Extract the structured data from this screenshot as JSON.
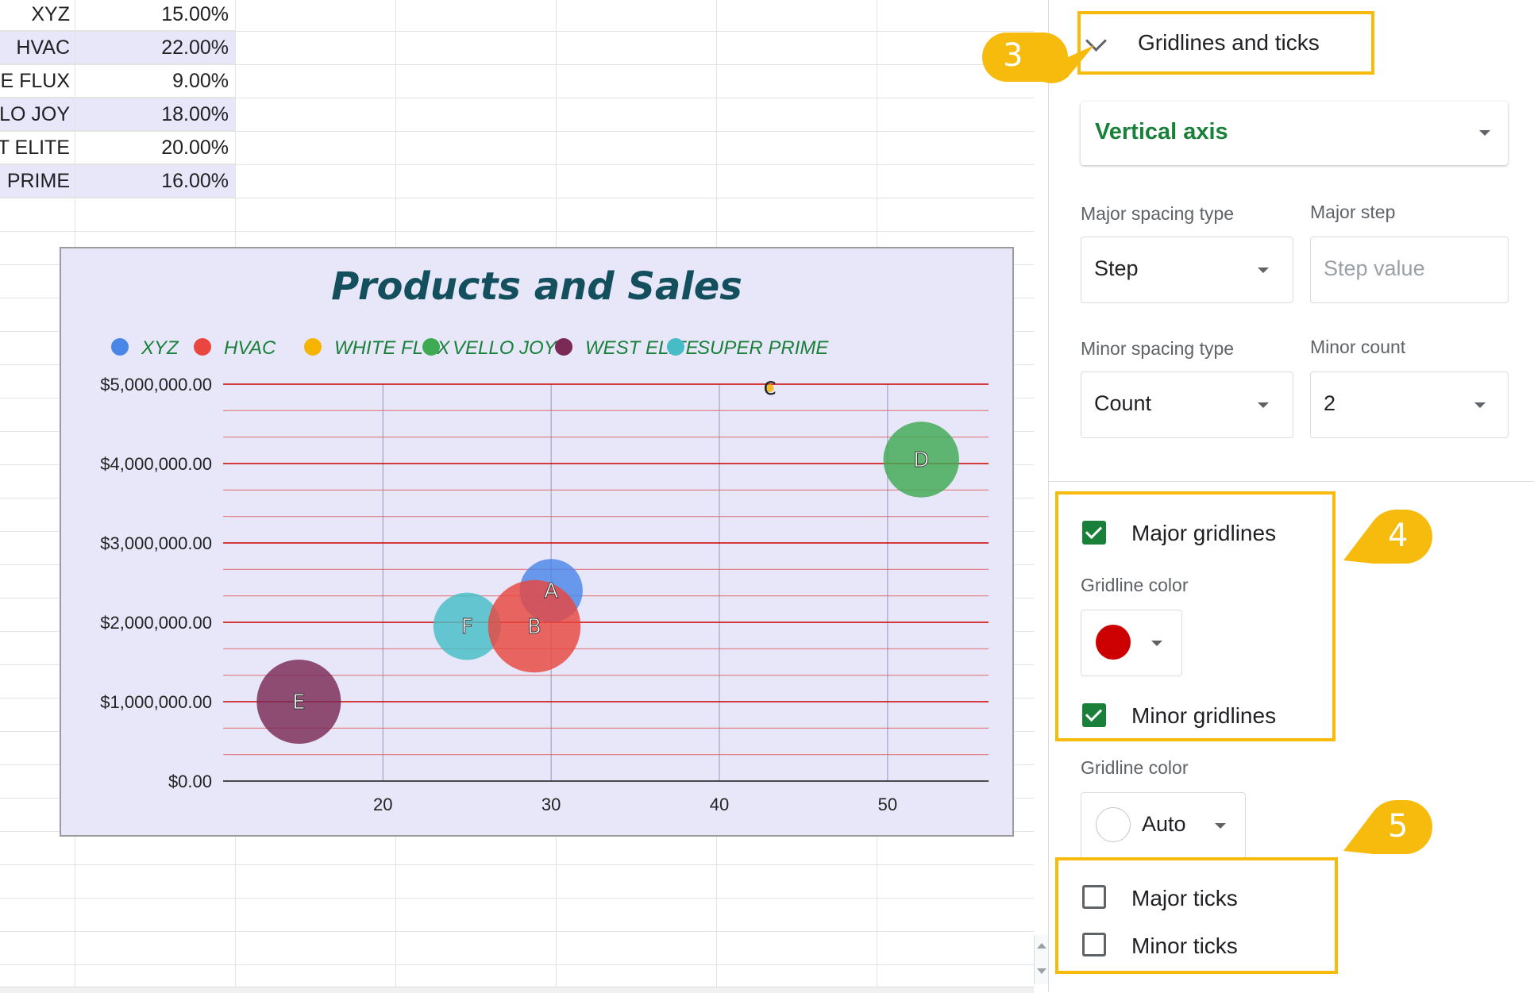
{
  "sheet": {
    "rows": [
      {
        "name": "XYZ",
        "pct": "15.00%",
        "shade": false
      },
      {
        "name": "HVAC",
        "pct": "22.00%",
        "shade": true
      },
      {
        "name": "E FLUX",
        "pct": "9.00%",
        "shade": false
      },
      {
        "name": "LO JOY",
        "pct": "18.00%",
        "shade": true
      },
      {
        "name": "T ELITE",
        "pct": "20.00%",
        "shade": false
      },
      {
        "name": "PRIME",
        "pct": "16.00%",
        "shade": true
      }
    ]
  },
  "chart_data": {
    "type": "scatter",
    "title": "Products and Sales",
    "title_color": "#134f5c",
    "legend_position": "top",
    "legend_text_color": "#188038",
    "xlabel": "",
    "ylabel": "",
    "xlim": [
      10.5,
      56
    ],
    "ylim": [
      0,
      5000000
    ],
    "x_ticks": [
      "20",
      "30",
      "40",
      "50"
    ],
    "x_tick_values": [
      20,
      30,
      40,
      50
    ],
    "y_ticks": [
      "$0.00",
      "$1,000,000.00",
      "$2,000,000.00",
      "$3,000,000.00",
      "$4,000,000.00",
      "$5,000,000.00"
    ],
    "y_tick_values": [
      0,
      1000000,
      2000000,
      3000000,
      4000000,
      5000000
    ],
    "major_gridline_color": "#cc0000",
    "minor_gridline_color": "#e06666",
    "vertical_gridline_color": "#9a96b8",
    "series": [
      {
        "name": "XYZ",
        "label": "A",
        "x": 30,
        "y": 2400000,
        "size": 15,
        "color": "#4a86e8"
      },
      {
        "name": "HVAC",
        "label": "B",
        "x": 29,
        "y": 1950000,
        "size": 22,
        "color": "#e8473f"
      },
      {
        "name": "WHITE FLUX",
        "label": "C",
        "x": 43,
        "y": 4950000,
        "size": 9,
        "color": "#f6b300"
      },
      {
        "name": "VELLO JOY",
        "label": "D",
        "x": 52,
        "y": 4050000,
        "size": 18,
        "color": "#3eaa53"
      },
      {
        "name": "WEST ELITE",
        "label": "E",
        "x": 15,
        "y": 1000000,
        "size": 20,
        "color": "#7a2a55"
      },
      {
        "name": "SUPER PRIME",
        "label": "F",
        "x": 25,
        "y": 1950000,
        "size": 16,
        "color": "#46bdc6"
      }
    ]
  },
  "panel": {
    "section_title": "Gridlines and ticks",
    "axis_select": "Vertical axis",
    "major_spacing_label": "Major spacing type",
    "major_spacing_value": "Step",
    "major_step_label": "Major step",
    "major_step_placeholder": "Step value",
    "minor_spacing_label": "Minor spacing type",
    "minor_spacing_value": "Count",
    "minor_count_label": "Minor count",
    "minor_count_value": "2",
    "major_gridlines_label": "Major gridlines",
    "major_gridline_color_label": "Gridline color",
    "major_gridline_color": "#cc0000",
    "minor_gridlines_label": "Minor gridlines",
    "minor_gridline_color_label": "Gridline color",
    "minor_gridline_color_value": "Auto",
    "major_ticks_label": "Major ticks",
    "minor_ticks_label": "Minor ticks"
  },
  "callouts": {
    "color": "#f7bb0e",
    "step3": "3",
    "step4": "4",
    "step5": "5"
  }
}
